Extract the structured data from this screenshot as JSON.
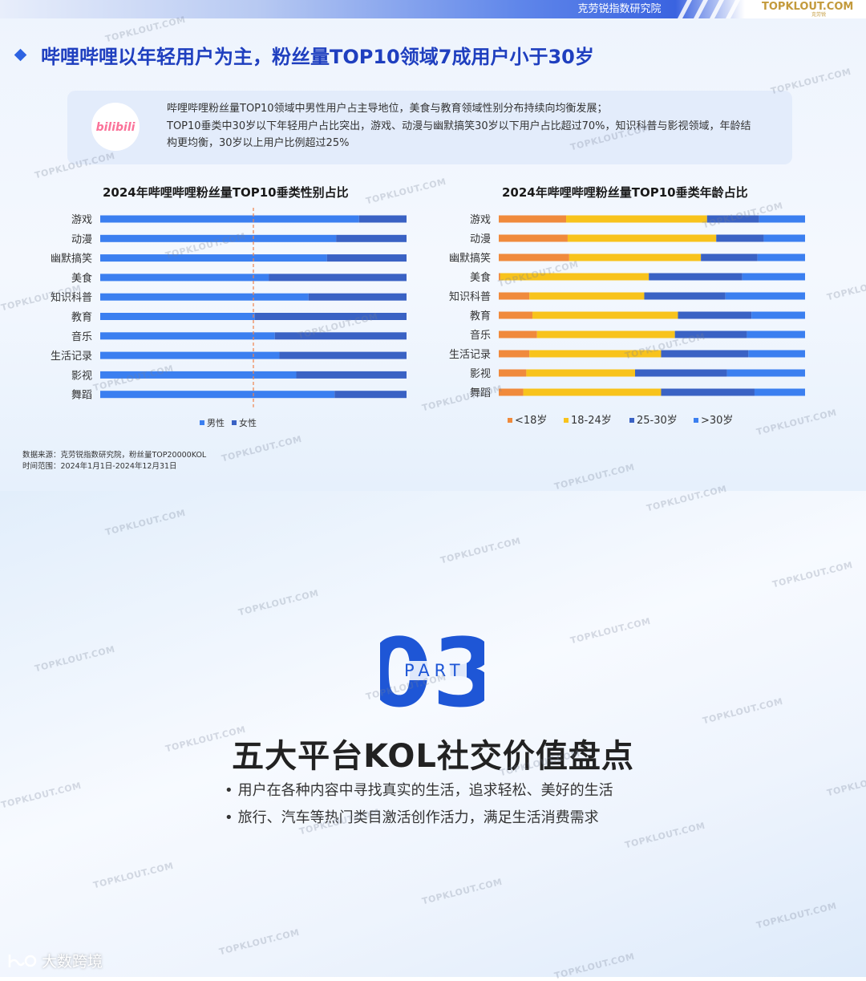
{
  "header": {
    "brand_tag": "克劳锐指数研究院",
    "logo_text": "TOPKLOUT.COM",
    "logo_sub": "克劳锐"
  },
  "slide1": {
    "title": "哔哩哔哩以年轻用户为主，粉丝量TOP10领域7成用户小于30岁",
    "summary_logo": "bilibili",
    "summary_lines": [
      "哔哩哔哩粉丝量TOP10领域中男性用户占主导地位，美食与教育领域性别分布持续向均衡发展；",
      "TOP10垂类中30岁以下年轻用户占比突出，游戏、动漫与幽默搞笑30岁以下用户占比超过70%，知识科普与影视领域，年龄结",
      "构更均衡，30岁以上用户比例超过25%"
    ],
    "footnote_lines": [
      "数据来源：克劳锐指数研究院，粉丝量TOP20000KOL",
      "时间范围：2024年1月1日-2024年12月31日"
    ]
  },
  "chart_data": [
    {
      "type": "bar",
      "orientation": "horizontal",
      "stacked": true,
      "title": "2024年哔哩哔哩粉丝量TOP10垂类性别占比",
      "categories": [
        "游戏",
        "动漫",
        "幽默搞笑",
        "美食",
        "知识科普",
        "教育",
        "音乐",
        "生活记录",
        "影视",
        "舞蹈"
      ],
      "series": [
        {
          "name": "男性",
          "color": "#3b7ff0",
          "values": [
            84.5,
            77,
            74,
            55,
            68,
            50.5,
            57,
            58.5,
            64,
            76.5
          ]
        },
        {
          "name": "女性",
          "color": "#3a62c4",
          "values": [
            15.5,
            23,
            26,
            45,
            32,
            49.5,
            43,
            41.5,
            36,
            23.5
          ]
        }
      ],
      "xlim": [
        0,
        100
      ],
      "reference_line": 50,
      "legend_position": "bottom"
    },
    {
      "type": "bar",
      "orientation": "horizontal",
      "stacked": true,
      "title": "2024年哔哩哔哩粉丝量TOP10垂类年龄占比",
      "categories": [
        "游戏",
        "动漫",
        "幽默搞笑",
        "美食",
        "知识科普",
        "教育",
        "音乐",
        "生活记录",
        "影视",
        "舞蹈"
      ],
      "series": [
        {
          "name": "<18岁",
          "color": "#f08a3c",
          "values": [
            22,
            22.5,
            23,
            0.5,
            10,
            11,
            12.5,
            10,
            9,
            8
          ]
        },
        {
          "name": "18-24岁",
          "color": "#f8c31c",
          "values": [
            46,
            48.5,
            43,
            48.5,
            37.5,
            47.5,
            45,
            43,
            35.5,
            45
          ]
        },
        {
          "name": "25-30岁",
          "color": "#3a62c4",
          "values": [
            17,
            15.5,
            18.5,
            30.5,
            26.5,
            24,
            23.5,
            28.5,
            30,
            30.5
          ]
        },
        {
          "name": ">30岁",
          "color": "#3b7ff0",
          "values": [
            15,
            13.5,
            15.5,
            20.5,
            26,
            17.5,
            19,
            18.5,
            25.5,
            16.5
          ]
        }
      ],
      "xlim": [
        0,
        100
      ],
      "legend_position": "bottom"
    }
  ],
  "slide2": {
    "part_number": "03",
    "part_label": "PART",
    "title": "五大平台KOL社交价值盘点",
    "bullets": [
      "用户在各种内容中寻找真实的生活，追求轻松、美好的生活",
      "旅行、汽车等热门类目激活创作活力，满足生活消费需求"
    ],
    "bottom_brand": "大数跨境"
  },
  "watermark_text": "TOPKLOUT.COM",
  "colors": {
    "title_blue": "#1f3fbf",
    "accent_blue": "#2d63e2",
    "card_bg": "#e3ecfb",
    "logo_gold": "#c39a3c",
    "bili_pink": "#fb7299"
  }
}
